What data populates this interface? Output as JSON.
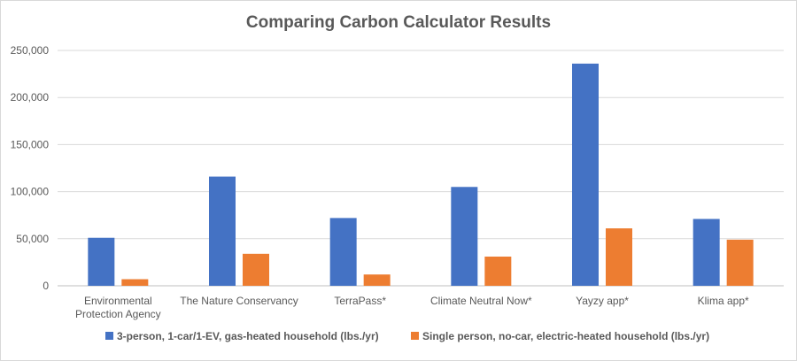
{
  "chart_data": {
    "type": "bar",
    "title": "Comparing Carbon Calculator Results",
    "categories": [
      [
        "Environmental",
        "Protection Agency"
      ],
      [
        "The Nature Conservancy"
      ],
      [
        "TerraPass*"
      ],
      [
        "Climate Neutral Now*"
      ],
      [
        "Yayzy app*"
      ],
      [
        "Klima app*"
      ]
    ],
    "series": [
      {
        "name": "3-person, 1-car/1-EV, gas-heated household (lbs./yr)",
        "color": "#4472c4",
        "values": [
          51000,
          116000,
          72000,
          105000,
          236000,
          71000
        ]
      },
      {
        "name": "Single person, no-car, electric-heated household (lbs./yr)",
        "color": "#ed7d31",
        "values": [
          7000,
          34000,
          12000,
          31000,
          61000,
          49000
        ]
      }
    ],
    "ylim": [
      0,
      250000
    ],
    "yticks": [
      0,
      50000,
      100000,
      150000,
      200000,
      250000
    ],
    "ytick_labels": [
      "0",
      "50,000",
      "100,000",
      "150,000",
      "200,000",
      "250,000"
    ],
    "grid": true,
    "legend_position": "bottom",
    "xlabel": "",
    "ylabel": ""
  }
}
